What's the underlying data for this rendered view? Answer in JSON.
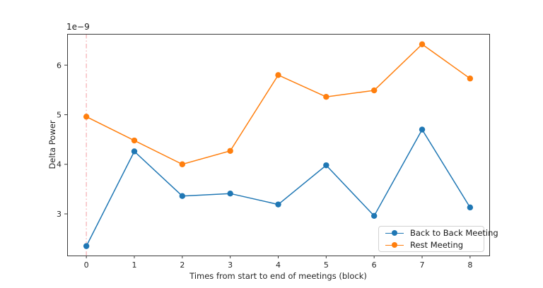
{
  "figure": {
    "background": "#ffffff",
    "offset_text": "1e−9"
  },
  "chart_data": {
    "type": "line",
    "title": "",
    "xlabel": "Times from start to end of meetings (block)",
    "ylabel": "Delta Power",
    "y_unit_offset": "1e−9",
    "x": [
      0,
      1,
      2,
      3,
      4,
      5,
      6,
      7,
      8
    ],
    "series": [
      {
        "name": "Back to Back Meeting",
        "color": "#1f77b4",
        "marker": "circle",
        "values": [
          2.35,
          4.26,
          3.36,
          3.41,
          3.19,
          3.98,
          2.96,
          4.7,
          3.13
        ]
      },
      {
        "name": "Rest Meeting",
        "color": "#ff7f0e",
        "marker": "circle",
        "values": [
          4.96,
          4.48,
          4.0,
          4.27,
          5.8,
          5.36,
          5.49,
          6.42,
          5.73
        ]
      }
    ],
    "xticks": [
      0,
      1,
      2,
      3,
      4,
      5,
      6,
      7,
      8
    ],
    "yticks": [
      3,
      4,
      5,
      6
    ],
    "xlim": [
      -0.4,
      8.4
    ],
    "ylim": [
      2.16,
      6.63
    ],
    "grid": false,
    "legend_position": "lower right",
    "annotations": [
      {
        "type": "vline",
        "x": 0,
        "style": "dashdot",
        "color": "#f6b8bc"
      }
    ],
    "spine_color": "#3a3a3a"
  }
}
